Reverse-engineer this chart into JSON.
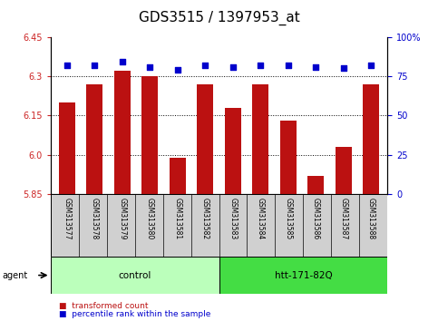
{
  "title": "GDS3515 / 1397953_at",
  "samples": [
    "GSM313577",
    "GSM313578",
    "GSM313579",
    "GSM313580",
    "GSM313581",
    "GSM313582",
    "GSM313583",
    "GSM313584",
    "GSM313585",
    "GSM313586",
    "GSM313587",
    "GSM313588"
  ],
  "bar_values": [
    6.2,
    6.27,
    6.32,
    6.3,
    5.99,
    6.27,
    6.18,
    6.27,
    6.13,
    5.92,
    6.03,
    6.27
  ],
  "percentile_values": [
    82,
    82,
    84,
    81,
    79,
    82,
    81,
    82,
    82,
    81,
    80,
    82
  ],
  "ylim_left": [
    5.85,
    6.45
  ],
  "ylim_right": [
    0,
    100
  ],
  "yticks_left": [
    5.85,
    6.0,
    6.15,
    6.3,
    6.45
  ],
  "yticks_right": [
    0,
    25,
    50,
    75,
    100
  ],
  "ytick_labels_right": [
    "0",
    "25",
    "50",
    "75",
    "100%"
  ],
  "bar_color": "#BB1111",
  "dot_color": "#0000CC",
  "agent_label": "agent",
  "groups": [
    {
      "label": "control",
      "start": 0,
      "end": 5,
      "color": "#BBFFBB"
    },
    {
      "label": "htt-171-82Q",
      "start": 6,
      "end": 11,
      "color": "#44DD44"
    }
  ],
  "title_fontsize": 11,
  "tick_fontsize": 7,
  "bar_width": 0.6
}
